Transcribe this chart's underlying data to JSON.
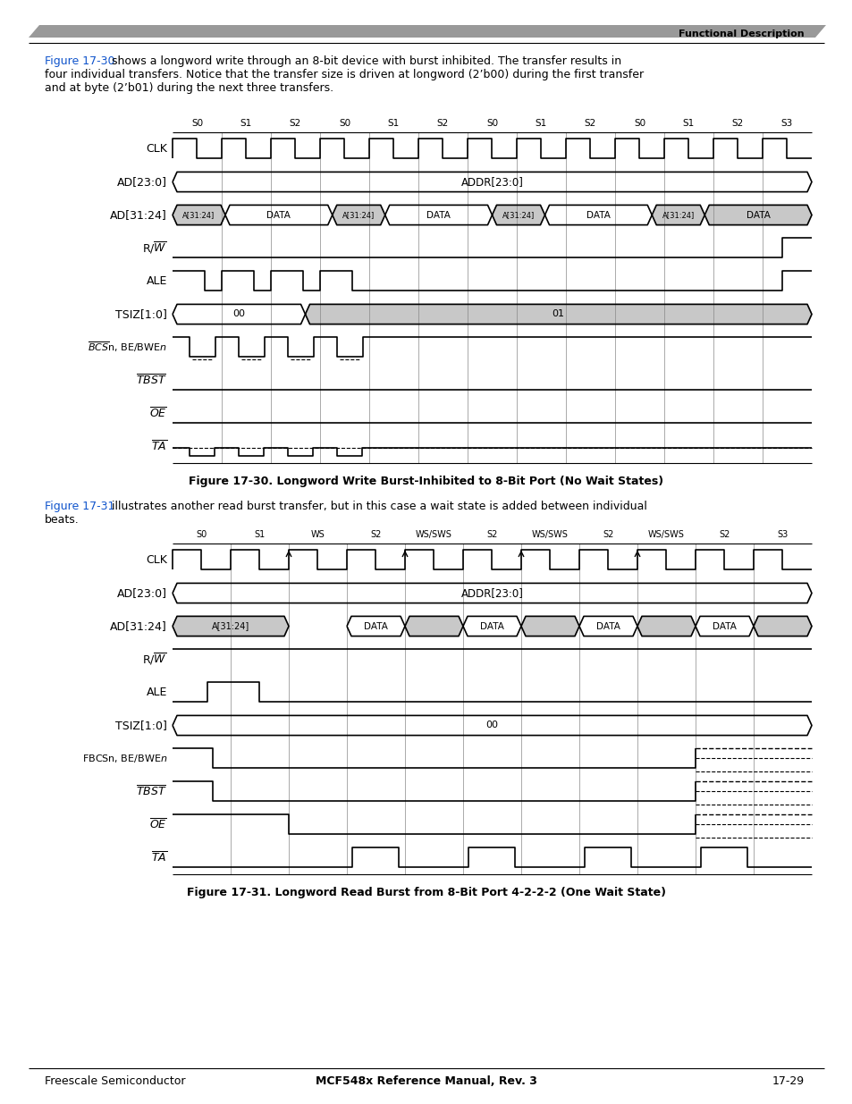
{
  "page_title": "Functional Description",
  "header_bar_color": "#999999",
  "footer_text": "MCF548x Reference Manual, Rev. 3",
  "footer_left": "Freescale Semiconductor",
  "footer_right": "17-29",
  "intro_text1_plain": " shows a longword write through an 8-bit device with burst inhibited. The transfer results in\nfour individual transfers. Notice that the transfer size is driven at longword (2’b00) during the first transfer\nand at byte (2’b01) during the next three transfers.",
  "intro_text1_link": "Figure 17-30",
  "fig1_caption": "Figure 17-30. Longword Write Burst-Inhibited to 8-Bit Port (No Wait States)",
  "fig2_caption": "Figure 17-31. Longword Read Burst from 8-Bit Port 4-2-2-2 (One Wait State)",
  "intro_text2_plain": " illustrates another read burst transfer, but in this case a wait state is added between individual\nbeats.",
  "intro_text2_link": "Figure 17-31",
  "fig1_clk_labels": [
    "S0",
    "S1",
    "S2",
    "S0",
    "S1",
    "S2",
    "S0",
    "S1",
    "S2",
    "S0",
    "S1",
    "S2",
    "S3"
  ],
  "fig2_clk_labels": [
    "S0",
    "S1",
    "WS",
    "S2",
    "WS/SWS",
    "S2",
    "WS/SWS",
    "S2",
    "WS/SWS",
    "S2",
    "S3"
  ]
}
